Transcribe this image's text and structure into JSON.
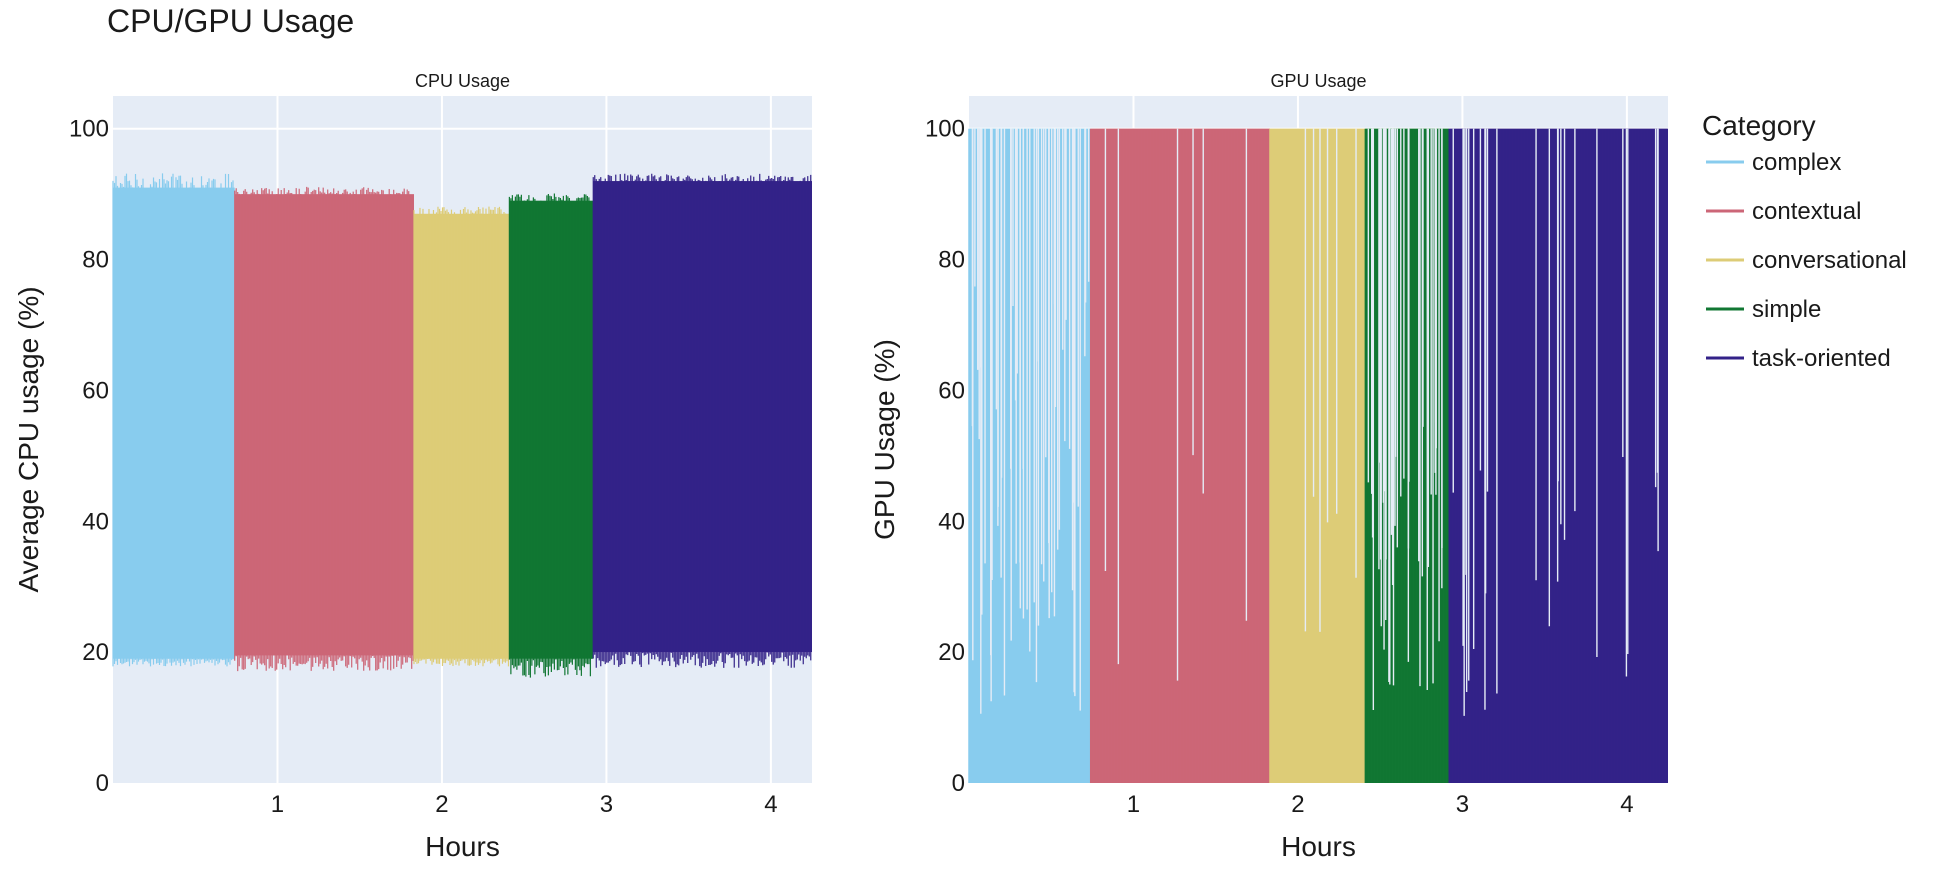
{
  "title": "CPU/GPU Usage",
  "legend": {
    "title": "Category",
    "placement": "right",
    "items": [
      {
        "name": "complex",
        "color": "#88CCEE"
      },
      {
        "name": "contextual",
        "color": "#CC6677"
      },
      {
        "name": "conversational",
        "color": "#DDCC77"
      },
      {
        "name": "simple",
        "color": "#117733"
      },
      {
        "name": "task-oriented",
        "color": "#332288"
      }
    ]
  },
  "chart_data": [
    {
      "type": "line",
      "title": "CPU Usage",
      "xlabel": "Hours",
      "ylabel": "Average CPU usage (%)",
      "xlim": [
        0,
        4.25
      ],
      "ylim": [
        0,
        105
      ],
      "xticks": [
        1,
        2,
        3,
        4
      ],
      "yticks": [
        0,
        20,
        40,
        60,
        80,
        100
      ],
      "grid": true,
      "series": [
        {
          "name": "complex",
          "color": "#88CCEE",
          "x_range": [
            0,
            0.74
          ],
          "low": 19,
          "high": 91,
          "extreme_low": 18,
          "extreme_high": 93
        },
        {
          "name": "contextual",
          "color": "#CC6677",
          "x_range": [
            0.74,
            1.83
          ],
          "low": 19.5,
          "high": 90,
          "extreme_low": 17.5,
          "extreme_high": 91
        },
        {
          "name": "conversational",
          "color": "#DDCC77",
          "x_range": [
            1.83,
            2.41
          ],
          "low": 19,
          "high": 87,
          "extreme_low": 18,
          "extreme_high": 88
        },
        {
          "name": "simple",
          "color": "#117733",
          "x_range": [
            2.41,
            2.92
          ],
          "low": 19,
          "high": 89,
          "extreme_low": 16.5,
          "extreme_high": 90
        },
        {
          "name": "task-oriented",
          "color": "#332288",
          "x_range": [
            2.92,
            4.25
          ],
          "low": 20,
          "high": 92,
          "extreme_low": 18,
          "extreme_high": 93
        }
      ]
    },
    {
      "type": "line",
      "title": "GPU Usage",
      "xlabel": "Hours",
      "ylabel": "GPU Usage (%)",
      "xlim": [
        0,
        4.25
      ],
      "ylim": [
        0,
        105
      ],
      "xticks": [
        1,
        2,
        3,
        4
      ],
      "yticks": [
        0,
        20,
        40,
        60,
        80,
        100
      ],
      "grid": true,
      "series": [
        {
          "name": "complex",
          "color": "#88CCEE",
          "x_range": [
            0,
            0.74
          ],
          "low": 0,
          "high": 100,
          "extreme_low": 0,
          "extreme_high": 100
        },
        {
          "name": "contextual",
          "color": "#CC6677",
          "x_range": [
            0.74,
            1.83
          ],
          "low": 0,
          "high": 100,
          "extreme_low": 0,
          "extreme_high": 100
        },
        {
          "name": "conversational",
          "color": "#DDCC77",
          "x_range": [
            1.83,
            2.41
          ],
          "low": 0,
          "high": 100,
          "extreme_low": 0,
          "extreme_high": 100
        },
        {
          "name": "simple",
          "color": "#117733",
          "x_range": [
            2.41,
            2.92
          ],
          "low": 0,
          "high": 100,
          "extreme_low": 0,
          "extreme_high": 100
        },
        {
          "name": "task-oriented",
          "color": "#332288",
          "x_range": [
            2.92,
            4.25
          ],
          "low": 0,
          "high": 100,
          "extreme_low": 0,
          "extreme_high": 100
        }
      ]
    }
  ]
}
